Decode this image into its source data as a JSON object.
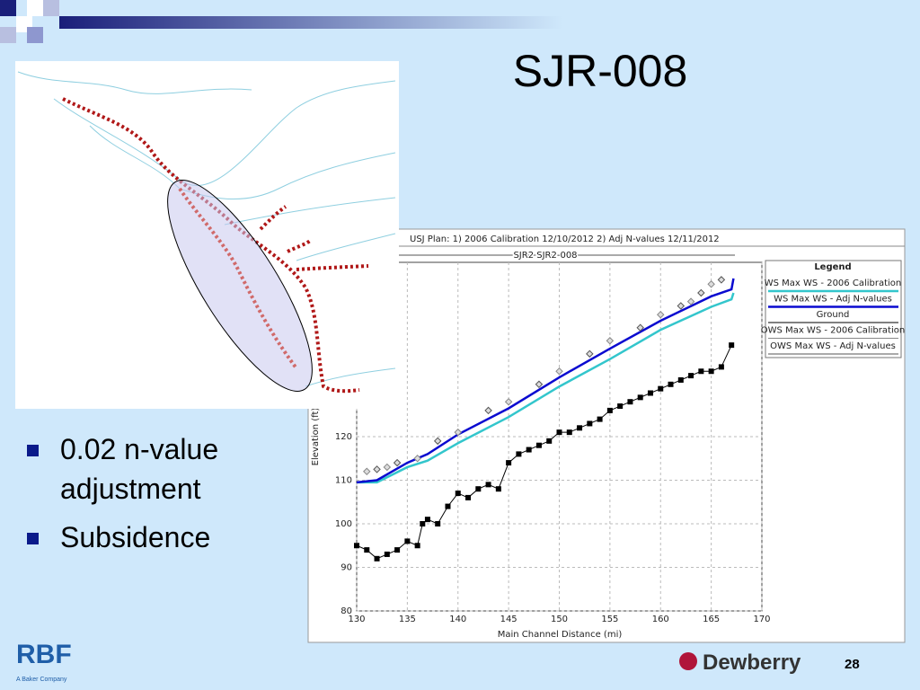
{
  "slide": {
    "title": "SJR-008",
    "bullets": [
      "0.02 n-value adjustment",
      "Subsidence"
    ],
    "page_number": "28",
    "logo_left": "RBF",
    "logo_left_caption": "A Baker Company",
    "logo_right": "Dewberry"
  },
  "chart_data": {
    "type": "line",
    "title": "USJ     Plan:   1) 2006 Calibration     12/10/2012     2) Adj N-values     12/11/2012",
    "subtitle": "SJR2 SJR2-008",
    "x_label": "Main Channel Distance (mi)",
    "y_label": "Elevation (ft)",
    "xlim": [
      130,
      170
    ],
    "ylim": [
      80,
      160
    ],
    "xticks": [
      130,
      135,
      140,
      145,
      150,
      155,
      160,
      165,
      170
    ],
    "yticks": [
      80,
      90,
      100,
      110,
      120
    ],
    "grid": true,
    "legend_title": "Legend",
    "series": [
      {
        "name": "WS  Max WS - 2006 Calibration",
        "color": "#33c6cc",
        "style": "line",
        "x": [
          130,
          132,
          135,
          137,
          140,
          145,
          150,
          155,
          160,
          165,
          167,
          167.2
        ],
        "values": [
          109.5,
          109.5,
          113,
          114.5,
          118.5,
          124.5,
          131.5,
          137.8,
          144.5,
          149.8,
          151.5,
          153
        ]
      },
      {
        "name": "WS  Max WS - Adj N-values",
        "color": "#0a0ad0",
        "style": "line",
        "x": [
          130,
          132,
          135,
          137,
          140,
          145,
          150,
          155,
          160,
          165,
          167,
          167.2
        ],
        "values": [
          109.5,
          110,
          114,
          116,
          120.5,
          126.5,
          133.6,
          140.2,
          146.6,
          152.2,
          153.8,
          156.3
        ]
      },
      {
        "name": "Ground",
        "color": "#000000",
        "style": "markers-line",
        "x": [
          130,
          131,
          132,
          133,
          134,
          135,
          136,
          136.5,
          137,
          138,
          139,
          140,
          141,
          142,
          143,
          144,
          145,
          146,
          147,
          148,
          149,
          150,
          151,
          152,
          153,
          154,
          155,
          156,
          157,
          158,
          159,
          160,
          161,
          162,
          163,
          164,
          165,
          166,
          167
        ],
        "values": [
          95,
          94,
          92,
          93,
          94,
          96,
          95,
          100,
          101,
          100,
          104,
          107,
          106,
          108,
          109,
          108,
          114,
          116,
          117,
          118,
          119,
          121,
          121,
          122,
          123,
          124,
          126,
          127,
          128,
          129,
          130,
          131,
          132,
          133,
          134,
          135,
          135,
          136,
          141
        ]
      },
      {
        "name": "OWS  Max WS - 2006 Calibration",
        "color": "#888888",
        "style": "markers",
        "x": [
          131,
          133,
          136,
          140,
          145,
          150,
          155,
          160,
          163,
          165
        ],
        "values": [
          112,
          113,
          115,
          121,
          128,
          135,
          142,
          148,
          151,
          155
        ]
      },
      {
        "name": "OWS  Max WS - Adj N-values",
        "color": "#555555",
        "style": "markers",
        "x": [
          132,
          134,
          138,
          143,
          148,
          153,
          158,
          162,
          164,
          166
        ],
        "values": [
          112.5,
          114,
          119,
          126,
          132,
          139,
          145,
          150,
          153,
          156
        ]
      }
    ]
  }
}
